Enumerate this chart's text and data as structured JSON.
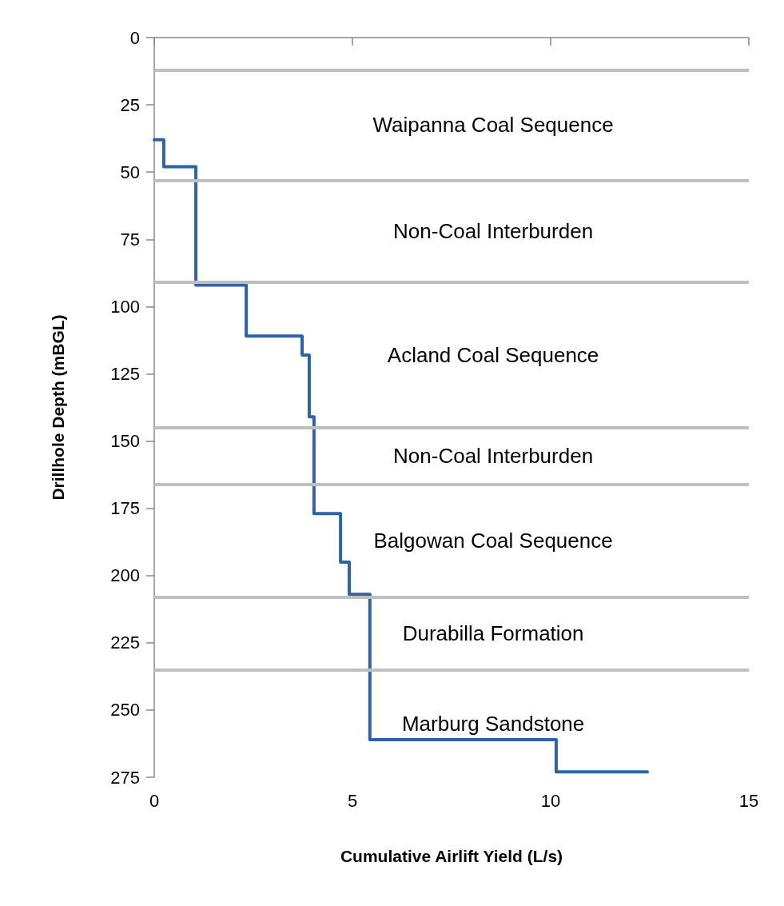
{
  "chart_data": {
    "type": "step",
    "xlabel": "Cumulative Airlift Yield (L/s)",
    "ylabel": "Drillhole Depth (mBGL)",
    "xlim": [
      0,
      15
    ],
    "xticks": [
      0,
      5,
      10,
      15
    ],
    "ylim": [
      275,
      0
    ],
    "yticks": [
      0,
      25,
      50,
      75,
      100,
      125,
      150,
      175,
      200,
      225,
      250,
      275
    ],
    "grid": false,
    "marker": "none",
    "line_style": "solid",
    "series": [
      {
        "color": "#2e64a4",
        "x": [
          0,
          0.24,
          1.05,
          2.32,
          3.73,
          3.91,
          4.03,
          4.7,
          4.92,
          5.44,
          10.14,
          12.44
        ],
        "values": [
          38,
          48,
          92,
          111,
          118,
          141,
          177,
          195,
          207,
          261,
          273,
          273
        ]
      }
    ],
    "ref_lines": [
      {
        "axis": "y",
        "value": 12,
        "color": "#bfbfbf"
      },
      {
        "axis": "y",
        "value": 53,
        "color": "#bfbfbf"
      },
      {
        "axis": "y",
        "value": 91,
        "color": "#bfbfbf"
      },
      {
        "axis": "y",
        "value": 145,
        "color": "#bfbfbf"
      },
      {
        "axis": "y",
        "value": 166,
        "color": "#bfbfbf"
      },
      {
        "axis": "y",
        "value": 208,
        "color": "#bfbfbf"
      },
      {
        "axis": "y",
        "value": 235,
        "color": "#bfbfbf"
      }
    ],
    "annotations": [
      "Waipanna Coal Sequence",
      "Non-Coal Interburden",
      "Acland Coal Sequence",
      "Non-Coal Interburden",
      "Balgowan Coal Sequence",
      "Durabilla Formation",
      "Marburg Sandstone"
    ]
  }
}
